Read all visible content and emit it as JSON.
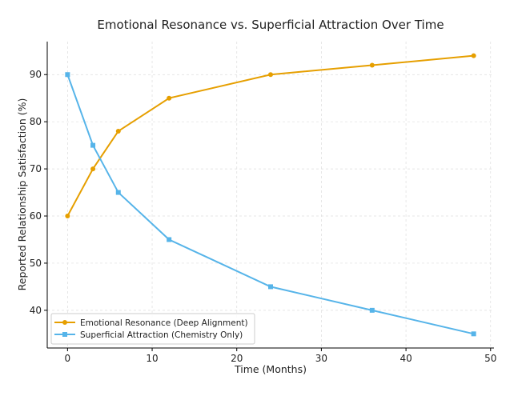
{
  "chart_data": {
    "type": "line",
    "title": "Emotional Resonance vs. Superficial Attraction Over Time",
    "xlabel": "Time (Months)",
    "ylabel": "Reported Relationship Satisfaction (%)",
    "xlim": [
      -2.4,
      50.4
    ],
    "ylim": [
      32,
      97
    ],
    "xticks": [
      0,
      10,
      20,
      30,
      40,
      50
    ],
    "yticks": [
      40,
      50,
      60,
      70,
      80,
      90
    ],
    "grid": true,
    "legend_position": "bottom-left",
    "x": [
      0,
      3,
      6,
      12,
      24,
      36,
      48
    ],
    "series": [
      {
        "name": "Emotional Resonance (Deep Alignment)",
        "values": [
          60,
          70,
          78,
          85,
          90,
          92,
          94
        ],
        "color": "#E69F00",
        "marker": "circle"
      },
      {
        "name": "Superficial Attraction (Chemistry Only)",
        "values": [
          90,
          75,
          65,
          55,
          45,
          40,
          35
        ],
        "color": "#56B4E9",
        "marker": "square"
      }
    ]
  }
}
